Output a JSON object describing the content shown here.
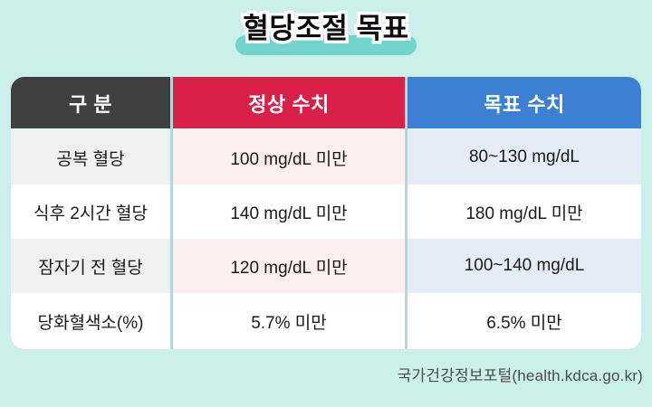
{
  "title": "혈당조절 목표",
  "source": "국가건강정보포털(health.kdca.go.kr)",
  "colors": {
    "page_background": "#cbf0ea",
    "title_highlight": "#72d5cc",
    "header_category_bg": "#404040",
    "header_normal_bg": "#d92148",
    "header_target_bg": "#3c80d3",
    "row_tint_gray": "#f0f0f0",
    "row_tint_pink": "#fdeef1",
    "row_tint_blue": "#e4edf7",
    "column_separator": "#aedcd8",
    "header_text": "#ffffff",
    "body_text": "#1a1a1a"
  },
  "chart_data": {
    "type": "table",
    "title": "혈당조절 목표",
    "columns": [
      "구 분",
      "정상 수치",
      "목표 수치"
    ],
    "rows": [
      [
        "공복 혈당",
        "100 mg/dL 미만",
        "80~130 mg/dL"
      ],
      [
        "식후 2시간 혈당",
        "140 mg/dL 미만",
        "180 mg/dL 미만"
      ],
      [
        "잠자기 전 혈당",
        "120 mg/dL 미만",
        "100~140 mg/dL"
      ],
      [
        "당화혈색소(%)",
        "5.7% 미만",
        "6.5% 미만"
      ]
    ],
    "source": "국가건강정보포털(health.kdca.go.kr)"
  }
}
